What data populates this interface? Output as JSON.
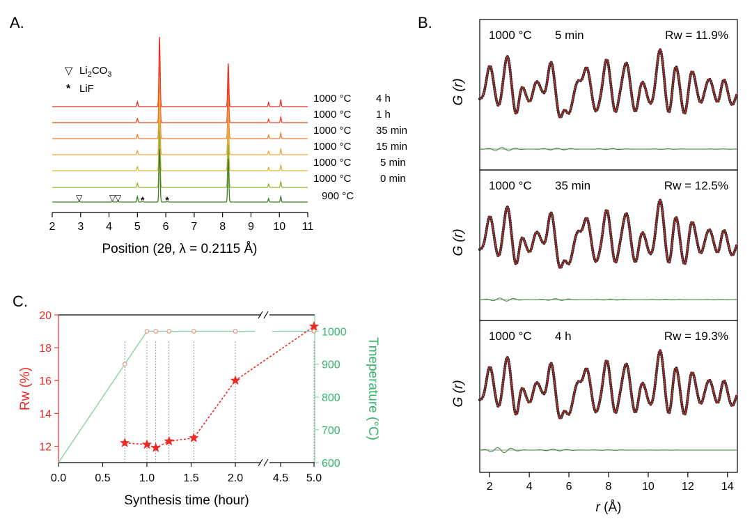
{
  "colors": {
    "red": "#ee2a24",
    "green": "#84d4a0",
    "teal_text": "#33b569",
    "diff": "#2e8b2e",
    "data_dot": "#2b2b2b",
    "grid": "#555555"
  },
  "chart_data": [
    {
      "id": "A",
      "type": "line",
      "panel_label": "A.",
      "title": "",
      "xlabel": "Position (2θ, λ = 0.2115 Å)",
      "ylabel": "",
      "xlim": [
        2,
        11
      ],
      "x_ticks": [
        "2",
        "3",
        "4",
        "5",
        "6",
        "7",
        "8",
        "9",
        "10",
        "11"
      ],
      "legend": [
        {
          "marker": "▽",
          "label": "Li2CO3"
        },
        {
          "marker": "*",
          "label": "LiF"
        }
      ],
      "series": [
        {
          "name": "1000 °C 4 h",
          "label_temp": "1000 °C",
          "label_time": "4 h",
          "color": "#ee2a24"
        },
        {
          "name": "1000 °C 1 h",
          "label_temp": "1000 °C",
          "label_time": "1 h",
          "color": "#ee4522"
        },
        {
          "name": "1000 °C 35 min",
          "label_temp": "1000 °C",
          "label_time": "35 min",
          "color": "#f37a30"
        },
        {
          "name": "1000 °C 15 min",
          "label_temp": "1000 °C",
          "label_time": "15 min",
          "color": "#f5a23a"
        },
        {
          "name": "1000 °C 5 min",
          "label_temp": "1000 °C",
          "label_time": "5 min",
          "color": "#d9b43a"
        },
        {
          "name": "1000 °C 0 min",
          "label_temp": "1000 °C",
          "label_time": "0 min",
          "color": "#8db232"
        },
        {
          "name": "900 °C",
          "label_temp": "900 °C",
          "label_time": "",
          "color": "#3f7f24"
        }
      ],
      "peaks_2theta": [
        5.0,
        5.78,
        8.2,
        9.62,
        10.05
      ],
      "li2co3_marks_2theta": [
        2.95,
        4.12,
        4.32
      ],
      "lif_marks_2theta": [
        5.18,
        6.05
      ]
    },
    {
      "id": "B",
      "type": "line",
      "panel_label": "B.",
      "xlabel_italic": "r",
      "xlabel_rest": " (Å)",
      "ylabel": "G (r)",
      "xlim": [
        1.5,
        14.5
      ],
      "x_ticks": [
        "2",
        "4",
        "6",
        "8",
        "10",
        "12",
        "14"
      ],
      "panels": [
        {
          "condition_temp": "1000 °C",
          "condition_time": "5 min",
          "rw_text": "Rw = 11.9%",
          "rw_value": 11.9
        },
        {
          "condition_temp": "1000 °C",
          "condition_time": "35 min",
          "rw_text": "Rw = 12.5%",
          "rw_value": 12.5
        },
        {
          "condition_temp": "1000 °C",
          "condition_time": "4 h",
          "rw_text": "Rw = 19.3%",
          "rw_value": 19.3
        }
      ]
    },
    {
      "id": "C",
      "type": "scatter",
      "panel_label": "C.",
      "xlabel": "Synthesis time (hour)",
      "ylabel_left": "Rw (%)",
      "ylabel_right": "Tmeperature (°C)",
      "x_ticks": [
        "0.0",
        "0.5",
        "1.0",
        "1.5",
        "2.0",
        "4.5",
        "5.0"
      ],
      "y_left_ticks": [
        "12",
        "14",
        "16",
        "18",
        "20"
      ],
      "y_right_ticks": [
        "600",
        "700",
        "800",
        "900",
        "1000"
      ],
      "ylim_left": [
        11,
        20
      ],
      "ylim_right": [
        600,
        1050
      ],
      "rw_series": {
        "name": "Rw",
        "x": [
          0.75,
          1.0,
          1.1,
          1.25,
          1.53,
          2.0,
          5.0
        ],
        "y": [
          12.2,
          12.1,
          11.9,
          12.3,
          12.5,
          16.0,
          19.3
        ]
      },
      "temperature_series": {
        "name": "Temperature",
        "x": [
          0,
          1.0,
          5.0
        ],
        "y": [
          600,
          1000,
          1000
        ]
      },
      "temperature_markers": {
        "x": [
          0.75,
          1.0,
          1.1,
          1.25,
          1.53,
          2.0,
          5.0
        ],
        "y": [
          900,
          1000,
          1000,
          1000,
          1000,
          1000,
          1000
        ]
      }
    }
  ]
}
